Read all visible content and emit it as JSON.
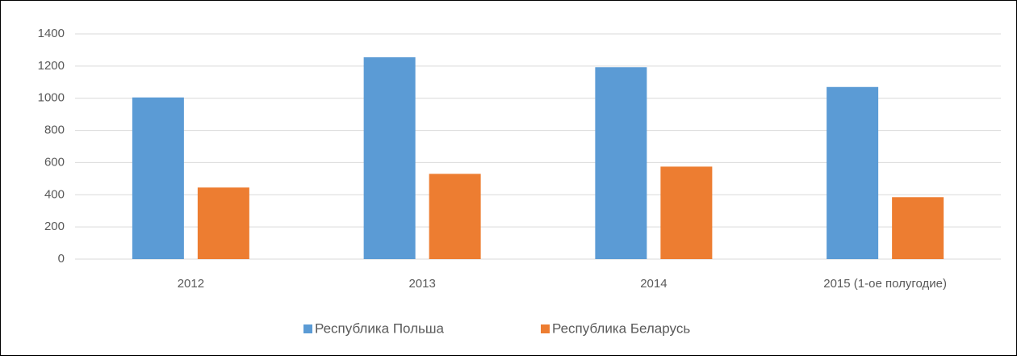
{
  "chart_data": {
    "type": "bar",
    "categories": [
      "2012",
      "2013",
      "2014",
      "2015 (1-ое полугодие)"
    ],
    "series": [
      {
        "name": "Республика Польша",
        "color": "#5b9bd5",
        "values": [
          1005,
          1255,
          1193,
          1070
        ]
      },
      {
        "name": "Республика Беларусь",
        "color": "#ed7d31",
        "values": [
          445,
          530,
          575,
          385
        ]
      }
    ],
    "ylim": [
      0,
      1400
    ],
    "yticks": [
      0,
      200,
      400,
      600,
      800,
      1000,
      1200,
      1400
    ],
    "grid": true,
    "legend": "bottom"
  }
}
